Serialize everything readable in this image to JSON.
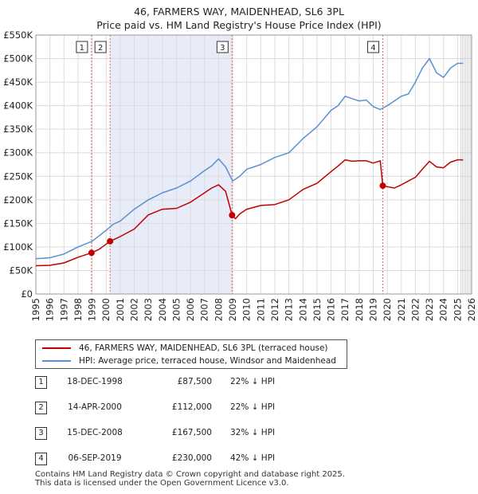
{
  "title_line1": "46, FARMERS WAY, MAIDENHEAD, SL6 3PL",
  "title_line2": "Price paid vs. HM Land Registry's House Price Index (HPI)",
  "colors": {
    "property": "#c00000",
    "hpi": "#5b8fd0",
    "shade": "#e8ecf8",
    "marker_line": "#e06060",
    "grid": "#dcdcdc"
  },
  "chart_data": {
    "type": "line",
    "xlim": [
      1995,
      2026
    ],
    "ylim": [
      0,
      550000
    ],
    "y_ticks": [
      0,
      50000,
      100000,
      150000,
      200000,
      250000,
      300000,
      350000,
      400000,
      450000,
      500000,
      550000
    ],
    "y_tick_labels": [
      "£0",
      "£50K",
      "£100K",
      "£150K",
      "£200K",
      "£250K",
      "£300K",
      "£350K",
      "£400K",
      "£450K",
      "£500K",
      "£550K"
    ],
    "x_ticks": [
      1995,
      1996,
      1997,
      1998,
      1999,
      2000,
      2001,
      2002,
      2003,
      2004,
      2005,
      2006,
      2007,
      2008,
      2009,
      2010,
      2011,
      2012,
      2013,
      2014,
      2015,
      2016,
      2017,
      2018,
      2019,
      2020,
      2021,
      2022,
      2023,
      2024,
      2025,
      2026
    ],
    "x_tick_labels": [
      "1995",
      "1996",
      "1997",
      "1998",
      "1999",
      "2000",
      "2001",
      "2002",
      "2003",
      "2004",
      "2005",
      "2006",
      "2007",
      "2008",
      "2009",
      "2010",
      "2011",
      "2012",
      "2013",
      "2014",
      "2015",
      "2016",
      "2017",
      "2018",
      "2019",
      "2020",
      "2021",
      "2022",
      "2023",
      "2024",
      "2025",
      "2026"
    ],
    "shaded_regions": [
      [
        2000.28,
        2008.96
      ]
    ],
    "forecast_start": 2025.25,
    "series": [
      {
        "name": "46, FARMERS WAY, MAIDENHEAD, SL6 3PL (terraced house)",
        "x": [
          1995,
          1996,
          1997,
          1998,
          1998.96,
          1999.5,
          2000.28,
          2001,
          2002,
          2003,
          2004,
          2005,
          2006,
          2007,
          2007.5,
          2008,
          2008.5,
          2008.96,
          2009.2,
          2009.5,
          2010,
          2011,
          2012,
          2013,
          2014,
          2015,
          2016,
          2016.5,
          2017,
          2017.5,
          2018,
          2018.5,
          2019,
          2019.5,
          2019.68,
          2020,
          2020.5,
          2021,
          2022,
          2022.5,
          2023,
          2023.5,
          2024,
          2024.5,
          2025,
          2025.4
        ],
        "values": [
          60000,
          61000,
          66000,
          78000,
          87500,
          95000,
          112000,
          122000,
          138000,
          168000,
          180000,
          182000,
          195000,
          215000,
          225000,
          232000,
          218000,
          167500,
          160000,
          170000,
          180000,
          188000,
          190000,
          200000,
          222000,
          235000,
          260000,
          272000,
          285000,
          282000,
          283000,
          283000,
          278000,
          283000,
          230000,
          228000,
          225000,
          232000,
          248000,
          265000,
          282000,
          270000,
          268000,
          280000,
          285000,
          285000
        ]
      },
      {
        "name": "HPI: Average price, terraced house, Windsor and Maidenhead",
        "x": [
          1995,
          1996,
          1997,
          1998,
          1999,
          2000,
          2000.5,
          2001,
          2002,
          2003,
          2004,
          2005,
          2006,
          2007,
          2007.5,
          2008,
          2008.5,
          2009,
          2009.5,
          2010,
          2011,
          2012,
          2013,
          2014,
          2015,
          2016,
          2016.5,
          2017,
          2017.5,
          2018,
          2018.5,
          2019,
          2019.5,
          2020,
          2020.5,
          2021,
          2021.5,
          2022,
          2022.5,
          2023,
          2023.5,
          2024,
          2024.5,
          2025,
          2025.4
        ],
        "values": [
          75000,
          77000,
          85000,
          100000,
          112000,
          135000,
          148000,
          155000,
          180000,
          200000,
          215000,
          225000,
          240000,
          262000,
          272000,
          287000,
          270000,
          240000,
          250000,
          265000,
          275000,
          290000,
          300000,
          330000,
          355000,
          390000,
          400000,
          420000,
          415000,
          410000,
          412000,
          398000,
          392000,
          400000,
          410000,
          420000,
          425000,
          450000,
          480000,
          500000,
          470000,
          460000,
          480000,
          490000,
          490000
        ]
      }
    ],
    "sales": [
      {
        "n": "1",
        "x": 1998.96,
        "value": 87500
      },
      {
        "n": "2",
        "x": 2000.28,
        "value": 112000
      },
      {
        "n": "3",
        "x": 2008.96,
        "value": 167500
      },
      {
        "n": "4",
        "x": 2019.68,
        "value": 230000
      }
    ]
  },
  "legend": {
    "property": "46, FARMERS WAY, MAIDENHEAD, SL6 3PL (terraced house)",
    "hpi": "HPI: Average price, terraced house, Windsor and Maidenhead"
  },
  "transactions": [
    {
      "n": "1",
      "date": "18-DEC-1998",
      "price": "£87,500",
      "hpi": "22% ↓ HPI"
    },
    {
      "n": "2",
      "date": "14-APR-2000",
      "price": "£112,000",
      "hpi": "22% ↓ HPI"
    },
    {
      "n": "3",
      "date": "15-DEC-2008",
      "price": "£167,500",
      "hpi": "32% ↓ HPI"
    },
    {
      "n": "4",
      "date": "06-SEP-2019",
      "price": "£230,000",
      "hpi": "42% ↓ HPI"
    }
  ],
  "footer_line1": "Contains HM Land Registry data © Crown copyright and database right 2025.",
  "footer_line2": "This data is licensed under the Open Government Licence v3.0."
}
